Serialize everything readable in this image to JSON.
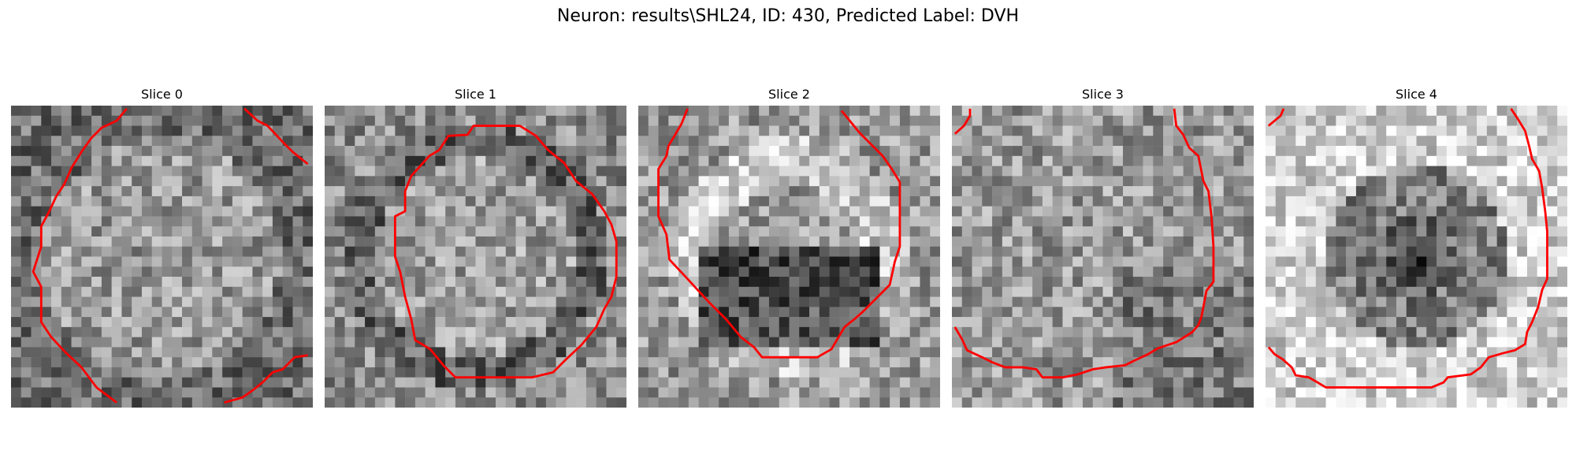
{
  "figure": {
    "title": "Neuron: results\\SHL24, ID: 430, Predicted Label: DVH",
    "contour_color": "#ff0000"
  },
  "panels": [
    {
      "title": "Slice 0",
      "pattern": "ring-dark",
      "seed": 11
    },
    {
      "title": "Slice 1",
      "pattern": "ring-dark-bright-center",
      "seed": 23
    },
    {
      "title": "Slice 2",
      "pattern": "bright-ring-dark-crescent",
      "seed": 37
    },
    {
      "title": "Slice 3",
      "pattern": "dark-lower-right",
      "seed": 41
    },
    {
      "title": "Slice 4",
      "pattern": "bright-with-dark-center",
      "seed": 53
    }
  ]
}
